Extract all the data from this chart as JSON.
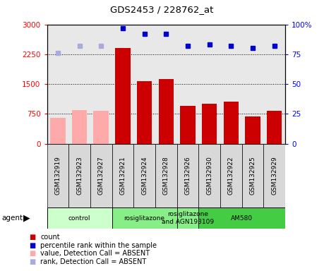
{
  "title": "GDS2453 / 228762_at",
  "samples": [
    "GSM132919",
    "GSM132923",
    "GSM132927",
    "GSM132921",
    "GSM132924",
    "GSM132928",
    "GSM132926",
    "GSM132930",
    "GSM132922",
    "GSM132925",
    "GSM132929"
  ],
  "bar_values": [
    650,
    850,
    820,
    2400,
    1580,
    1620,
    950,
    1000,
    1050,
    680,
    820
  ],
  "bar_absent": [
    true,
    true,
    true,
    false,
    false,
    false,
    false,
    false,
    false,
    false,
    false
  ],
  "rank_values": [
    76,
    82,
    82,
    97,
    92,
    92,
    82,
    83,
    82,
    80,
    82
  ],
  "rank_absent": [
    true,
    true,
    true,
    false,
    false,
    false,
    false,
    false,
    false,
    false,
    false
  ],
  "bar_color_present": "#cc0000",
  "bar_color_absent": "#ffaaaa",
  "rank_color_present": "#0000cc",
  "rank_color_absent": "#aaaadd",
  "ylim_left": [
    0,
    3000
  ],
  "ylim_right": [
    0,
    100
  ],
  "yticks_left": [
    0,
    750,
    1500,
    2250,
    3000
  ],
  "yticks_right": [
    0,
    25,
    50,
    75,
    100
  ],
  "groups": [
    {
      "label": "control",
      "start": 0,
      "end": 3,
      "color": "#ccffcc"
    },
    {
      "label": "rosiglitazone",
      "start": 3,
      "end": 6,
      "color": "#88ee88"
    },
    {
      "label": "rosiglitazone\nand AGN193109",
      "start": 6,
      "end": 7,
      "color": "#88ee88"
    },
    {
      "label": "AM580",
      "start": 7,
      "end": 11,
      "color": "#44cc44"
    }
  ],
  "agent_label": "agent",
  "legend_items": [
    {
      "color": "#cc0000",
      "label": "count"
    },
    {
      "color": "#0000cc",
      "label": "percentile rank within the sample"
    },
    {
      "color": "#ffaaaa",
      "label": "value, Detection Call = ABSENT"
    },
    {
      "color": "#aaaadd",
      "label": "rank, Detection Call = ABSENT"
    }
  ],
  "cell_bg_color": "#d8d8d8",
  "plot_bg_color": "#e8e8e8"
}
